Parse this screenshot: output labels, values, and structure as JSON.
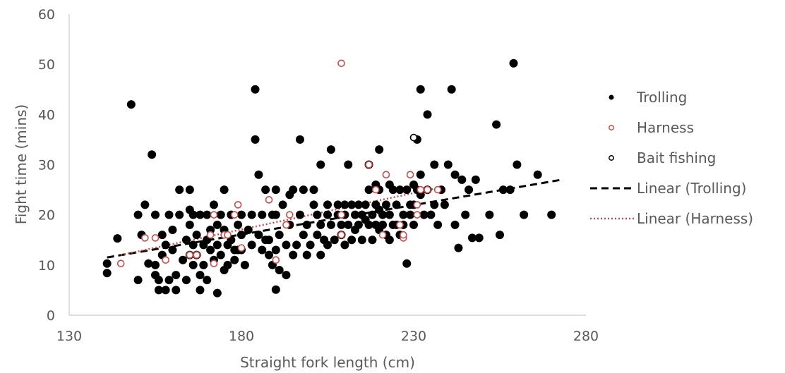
{
  "chart_data": {
    "type": "scatter",
    "title": "",
    "xlabel": "Straight fork length (cm)",
    "ylabel": "Fight time (mins)",
    "xlim": [
      130,
      280
    ],
    "ylim": [
      0,
      60
    ],
    "xticks": [
      130,
      180,
      230,
      280
    ],
    "yticks": [
      0,
      10,
      20,
      30,
      40,
      50,
      60
    ],
    "grid": false,
    "legend_position": "right",
    "series": [
      {
        "name": "Trolling",
        "marker": "filled-circle",
        "color": "#000000",
        "points": [
          [
            141,
            10.3
          ],
          [
            141,
            8.4
          ],
          [
            144,
            15.3
          ],
          [
            148,
            42
          ],
          [
            150,
            7
          ],
          [
            150,
            20
          ],
          [
            151,
            16
          ],
          [
            152,
            22
          ],
          [
            153,
            10.3
          ],
          [
            154,
            32
          ],
          [
            155,
            20
          ],
          [
            155,
            10
          ],
          [
            155,
            8
          ],
          [
            156,
            7
          ],
          [
            156,
            5
          ],
          [
            157,
            16
          ],
          [
            157,
            12
          ],
          [
            158,
            14
          ],
          [
            158,
            5
          ],
          [
            159,
            7
          ],
          [
            159,
            20
          ],
          [
            160,
            17
          ],
          [
            160,
            13
          ],
          [
            161,
            5
          ],
          [
            161,
            8
          ],
          [
            162,
            25
          ],
          [
            162,
            20
          ],
          [
            163,
            11
          ],
          [
            164,
            15
          ],
          [
            164,
            7
          ],
          [
            165,
            25
          ],
          [
            165,
            21
          ],
          [
            165,
            18
          ],
          [
            165,
            12
          ],
          [
            166,
            20
          ],
          [
            166,
            14
          ],
          [
            166,
            10
          ],
          [
            167,
            16
          ],
          [
            167,
            12
          ],
          [
            168,
            20
          ],
          [
            168,
            8
          ],
          [
            168,
            5
          ],
          [
            169,
            14
          ],
          [
            169,
            10
          ],
          [
            170,
            20
          ],
          [
            170,
            15
          ],
          [
            170,
            7
          ],
          [
            171,
            17
          ],
          [
            171,
            13
          ],
          [
            172,
            11
          ],
          [
            172,
            22
          ],
          [
            173,
            4.4
          ],
          [
            173,
            18
          ],
          [
            173,
            14
          ],
          [
            174,
            20
          ],
          [
            174,
            12
          ],
          [
            175,
            25
          ],
          [
            175,
            17
          ],
          [
            175,
            9
          ],
          [
            176,
            14
          ],
          [
            176,
            10
          ],
          [
            177,
            20
          ],
          [
            177,
            15
          ],
          [
            178,
            13
          ],
          [
            178,
            11
          ],
          [
            179,
            18
          ],
          [
            179,
            13
          ],
          [
            180,
            20
          ],
          [
            180,
            16
          ],
          [
            180,
            13
          ],
          [
            181,
            10
          ],
          [
            182,
            17
          ],
          [
            183,
            14
          ],
          [
            183,
            20
          ],
          [
            184,
            45
          ],
          [
            184,
            35
          ],
          [
            185,
            28
          ],
          [
            185,
            16
          ],
          [
            186,
            13
          ],
          [
            186,
            20
          ],
          [
            187,
            15
          ],
          [
            187,
            25
          ],
          [
            188,
            15
          ],
          [
            188,
            12
          ],
          [
            189,
            20
          ],
          [
            189,
            10
          ],
          [
            190,
            25
          ],
          [
            190,
            20
          ],
          [
            190,
            13
          ],
          [
            190,
            5.1
          ],
          [
            191,
            16
          ],
          [
            191,
            9
          ],
          [
            192,
            22
          ],
          [
            193,
            14
          ],
          [
            193,
            8
          ],
          [
            194,
            18
          ],
          [
            194,
            24
          ],
          [
            195,
            25
          ],
          [
            195,
            12
          ],
          [
            196,
            14
          ],
          [
            197,
            20
          ],
          [
            197,
            35
          ],
          [
            198,
            25
          ],
          [
            198,
            16
          ],
          [
            199,
            18
          ],
          [
            199,
            12
          ],
          [
            200,
            14
          ],
          [
            201,
            22
          ],
          [
            201,
            25
          ],
          [
            202,
            20
          ],
          [
            202,
            16
          ],
          [
            203,
            30
          ],
          [
            203,
            18
          ],
          [
            203,
            12
          ],
          [
            204,
            15
          ],
          [
            205,
            20
          ],
          [
            205,
            22
          ],
          [
            205,
            14
          ],
          [
            206,
            33
          ],
          [
            206,
            18
          ],
          [
            207,
            15
          ],
          [
            208,
            22
          ],
          [
            208,
            20
          ],
          [
            209,
            18
          ],
          [
            209,
            16
          ],
          [
            210,
            22
          ],
          [
            210,
            20
          ],
          [
            210,
            14
          ],
          [
            211,
            30
          ],
          [
            211,
            18
          ],
          [
            212,
            22
          ],
          [
            212,
            15
          ],
          [
            213,
            20
          ],
          [
            213,
            17
          ],
          [
            214,
            22
          ],
          [
            214,
            18
          ],
          [
            215,
            20
          ],
          [
            215,
            15
          ],
          [
            216,
            22
          ],
          [
            216,
            19
          ],
          [
            217,
            30
          ],
          [
            217,
            25
          ],
          [
            217,
            18
          ],
          [
            218,
            20
          ],
          [
            218,
            15
          ],
          [
            219,
            26
          ],
          [
            219,
            22
          ],
          [
            219,
            18
          ],
          [
            220,
            33
          ],
          [
            220,
            25
          ],
          [
            220,
            21
          ],
          [
            220,
            17
          ],
          [
            221,
            20
          ],
          [
            221,
            18
          ],
          [
            222,
            22
          ],
          [
            222,
            16
          ],
          [
            223,
            26
          ],
          [
            223,
            20
          ],
          [
            223,
            15
          ],
          [
            224,
            25
          ],
          [
            224,
            18
          ],
          [
            225,
            22
          ],
          [
            225,
            18
          ],
          [
            226,
            25
          ],
          [
            226,
            16
          ],
          [
            227,
            20
          ],
          [
            227,
            18
          ],
          [
            228,
            25
          ],
          [
            228,
            10.3
          ],
          [
            229,
            22
          ],
          [
            229,
            20
          ],
          [
            230,
            26
          ],
          [
            230,
            22
          ],
          [
            230,
            18
          ],
          [
            231,
            35
          ],
          [
            231,
            25
          ],
          [
            232,
            45
          ],
          [
            232,
            28
          ],
          [
            232,
            24
          ],
          [
            233,
            20
          ],
          [
            234,
            40
          ],
          [
            234,
            25
          ],
          [
            235,
            20
          ],
          [
            236,
            30
          ],
          [
            236,
            22
          ],
          [
            237,
            18
          ],
          [
            238,
            25
          ],
          [
            239,
            22
          ],
          [
            240,
            30
          ],
          [
            241,
            45
          ],
          [
            242,
            28
          ],
          [
            242,
            18
          ],
          [
            243,
            13.4
          ],
          [
            244,
            27
          ],
          [
            245,
            20
          ],
          [
            246,
            25
          ],
          [
            247,
            15.4
          ],
          [
            248,
            27
          ],
          [
            249,
            15.4
          ],
          [
            252,
            20
          ],
          [
            254,
            38
          ],
          [
            255,
            16
          ],
          [
            256,
            25
          ],
          [
            258,
            25
          ],
          [
            259,
            50.2
          ],
          [
            260,
            30
          ],
          [
            262,
            20
          ],
          [
            266,
            28
          ],
          [
            270,
            20
          ]
        ]
      },
      {
        "name": "Harness",
        "marker": "open-circle",
        "color": "#c0504d",
        "points": [
          [
            145,
            10.3
          ],
          [
            152,
            15.4
          ],
          [
            155,
            15.4
          ],
          [
            158,
            11
          ],
          [
            165,
            12
          ],
          [
            167,
            12
          ],
          [
            171,
            16
          ],
          [
            172,
            20
          ],
          [
            172,
            10.3
          ],
          [
            175,
            16
          ],
          [
            176,
            16
          ],
          [
            178,
            20
          ],
          [
            179,
            22
          ],
          [
            180,
            13.4
          ],
          [
            188,
            23
          ],
          [
            190,
            11
          ],
          [
            193,
            18
          ],
          [
            194,
            20
          ],
          [
            209,
            50.2
          ],
          [
            209,
            20
          ],
          [
            209,
            16
          ],
          [
            217,
            30
          ],
          [
            219,
            25
          ],
          [
            221,
            16
          ],
          [
            222,
            28
          ],
          [
            226,
            18
          ],
          [
            227,
            15.4
          ],
          [
            227,
            16
          ],
          [
            229,
            28
          ],
          [
            231,
            22
          ],
          [
            231,
            20
          ],
          [
            232,
            25
          ],
          [
            234,
            25
          ],
          [
            237,
            25
          ]
        ]
      },
      {
        "name": "Bait fishing",
        "marker": "open-circle",
        "color": "#000000",
        "points": [
          [
            230,
            35.4
          ]
        ]
      },
      {
        "name": "Linear (Trolling)",
        "line_style": "dashed",
        "color": "#000000",
        "points": [
          [
            141,
            11.5
          ],
          [
            273,
            27
          ]
        ]
      },
      {
        "name": "Linear (Harness)",
        "line_style": "dotted",
        "color": "#c0504d",
        "points": [
          [
            145,
            12
          ],
          [
            238,
            25.5
          ]
        ]
      }
    ]
  },
  "legend": {
    "items": [
      {
        "label": "Trolling",
        "kind": "filled-circle",
        "color": "#000000"
      },
      {
        "label": "Harness",
        "kind": "open-circle",
        "color": "#c0504d"
      },
      {
        "label": "Bait fishing",
        "kind": "open-circle",
        "color": "#000000"
      },
      {
        "label": "Linear (Trolling)",
        "kind": "dashed-line",
        "color": "#000000"
      },
      {
        "label": "Linear (Harness)",
        "kind": "dotted-line",
        "color": "#c0504d"
      }
    ]
  },
  "colors": {
    "axis": "#bfbfbf",
    "text": "#595959"
  }
}
